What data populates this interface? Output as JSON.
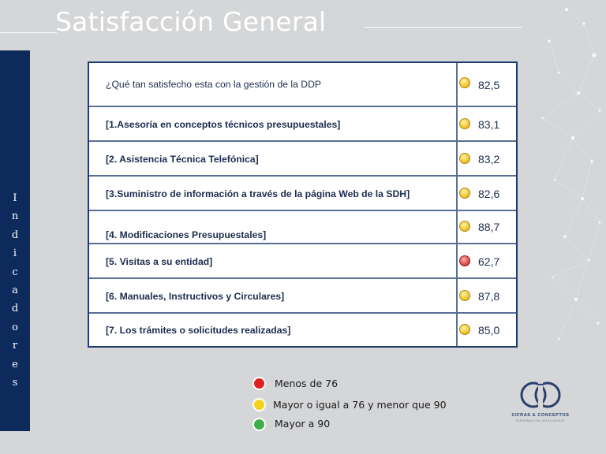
{
  "slide": {
    "title": "Satisfacción General",
    "sidebar_letters": [
      "I",
      "n",
      "d",
      "i",
      "c",
      "a",
      "d",
      "o",
      "r",
      "e",
      "s"
    ]
  },
  "table": {
    "rows": [
      {
        "label": "¿Qué  tan satisfecho esta con la gestión de la DDP",
        "value": "82,5",
        "status": "yellow"
      },
      {
        "label": "[1.Asesoría  en conceptos técnicos presupuestales]",
        "value": "83,1",
        "status": "yellow"
      },
      {
        "label": "[2. Asistencia  Técnica Telefónica]",
        "value": "83,2",
        "status": "yellow"
      },
      {
        "label": "[3.Suministro de información a través de la página Web de la SDH]",
        "value": "82,6",
        "status": "yellow"
      },
      {
        "label": "[4. Modificaciones Presupuestales]",
        "value": "88,7",
        "status": "yellow"
      },
      {
        "label": "[5. Visitas a  su entidad]",
        "value": "62,7",
        "status": "red"
      },
      {
        "label": "[6. Manuales, Instructivos y Circulares]",
        "value": "87,8",
        "status": "yellow"
      },
      {
        "label": "[7. Los trámites o solicitudes realizadas]",
        "value": "85,0",
        "status": "yellow"
      }
    ]
  },
  "legend": {
    "items": [
      {
        "label": "Menos de 76",
        "color": "#e02020"
      },
      {
        "label": "Mayor o igual a 76 y menor que 90",
        "color": "#f3d21c"
      },
      {
        "label": "Mayor a 90",
        "color": "#3fae4a"
      }
    ]
  },
  "logo": {
    "name": "CIFRAS & CONCEPTOS",
    "tagline": "INFORMACION INTELIGENTE"
  },
  "colors": {
    "background": "#d5d6d8",
    "sidebar": "#0d2a5c",
    "table_border": "#1f3c6e",
    "status_yellow": "#f2c42c",
    "status_red": "#e04b4b"
  }
}
